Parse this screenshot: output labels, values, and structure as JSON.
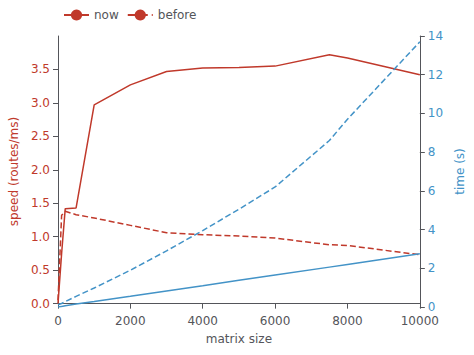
{
  "chart_data": {
    "type": "line",
    "xlabel": "matrix size",
    "ylabel": "speed (routes/ms)",
    "y2label": "time (s)",
    "x": [
      0,
      100,
      200,
      500,
      1000,
      2000,
      3000,
      4000,
      5000,
      6000,
      7500,
      8000,
      10000
    ],
    "series": [
      {
        "name": "now",
        "color": "#c0392b",
        "line_style": "solid",
        "values": [
          0.0,
          0.75,
          1.42,
          1.43,
          2.97,
          3.27,
          3.47,
          3.52,
          3.53,
          3.55,
          3.72,
          3.67,
          3.42
        ]
      },
      {
        "name": "before",
        "color": "#c0392b",
        "line_style": "dashed",
        "values": [
          0.05,
          1.32,
          1.38,
          1.33,
          1.28,
          1.17,
          1.06,
          1.03,
          1.01,
          0.98,
          0.88,
          0.87,
          0.73
        ]
      },
      {
        "color": "#4393c7",
        "line_style": "solid",
        "axis": "y2",
        "values": [
          0.0,
          0.03,
          0.06,
          0.15,
          0.28,
          0.55,
          0.83,
          1.1,
          1.38,
          1.65,
          2.06,
          2.2,
          2.75
        ]
      },
      {
        "color": "#4393c7",
        "line_style": "dashed",
        "axis": "y2",
        "values": [
          0.12,
          0.18,
          0.28,
          0.55,
          0.98,
          1.9,
          2.9,
          3.95,
          5.05,
          6.2,
          8.6,
          9.7,
          13.7
        ]
      }
    ],
    "xlim": [
      0,
      10000
    ],
    "xticks": [
      0,
      2000,
      4000,
      6000,
      8000,
      10000
    ],
    "ylim": [
      -0.05,
      4.0
    ],
    "yticks": [
      {
        "value": 0,
        "label": "0.0"
      },
      0.5,
      {
        "value": 1,
        "label": "1.0"
      },
      1.5,
      {
        "value": 2,
        "label": "2.0"
      },
      2.5,
      {
        "value": 3,
        "label": "3.0"
      },
      3.5
    ],
    "y2lim": [
      0,
      14
    ],
    "y2ticks": [
      0,
      2,
      4,
      6,
      8,
      10,
      12,
      14
    ],
    "grid": false,
    "legend": "upper left"
  }
}
